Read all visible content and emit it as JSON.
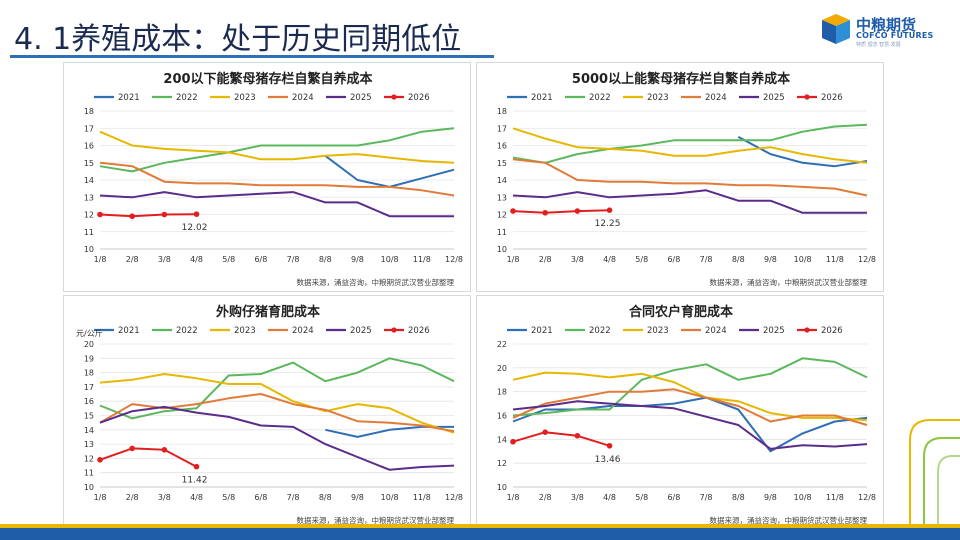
{
  "slide": {
    "title": "4. 1养殖成本：处于历史同期低位",
    "logo_cn": "中粮期货",
    "logo_en": "COFCO FUTURES",
    "logo_tag": "特质    理念    智慧    发展",
    "accent_color": "#2e6fb5"
  },
  "series_colors": {
    "2021": "#2e6fb5",
    "2022": "#5cb85c",
    "2023": "#e6b800",
    "2024": "#e07b39",
    "2025": "#5b2c8a",
    "2026": "#e02020"
  },
  "chart_data": [
    {
      "type": "line",
      "title": "200以下能繁母猪存栏自繁自养成本",
      "ylabel": "",
      "source": "数据来源，涌益咨询，中粮期货武汉营业部整理",
      "categories": [
        "1/8",
        "2/8",
        "3/8",
        "4/8",
        "5/8",
        "6/8",
        "7/8",
        "8/8",
        "9/8",
        "10/8",
        "11/8",
        "12/8"
      ],
      "yticks": [
        10,
        11,
        12,
        13,
        14,
        15,
        16,
        17,
        18
      ],
      "ylim": [
        10,
        18
      ],
      "end_label": "12.02",
      "series": [
        {
          "name": "2021",
          "values": [
            null,
            null,
            null,
            null,
            null,
            null,
            null,
            15.4,
            14.0,
            13.6,
            14.1,
            14.6
          ]
        },
        {
          "name": "2022",
          "values": [
            14.8,
            14.5,
            15.0,
            15.3,
            15.6,
            16.0,
            16.0,
            16.0,
            16.0,
            16.3,
            16.8,
            17.0
          ]
        },
        {
          "name": "2023",
          "values": [
            16.8,
            16.0,
            15.8,
            15.7,
            15.6,
            15.2,
            15.2,
            15.4,
            15.5,
            15.3,
            15.1,
            15.0
          ]
        },
        {
          "name": "2024",
          "values": [
            15.0,
            14.8,
            13.9,
            13.8,
            13.8,
            13.7,
            13.7,
            13.7,
            13.6,
            13.6,
            13.4,
            13.1
          ]
        },
        {
          "name": "2025",
          "values": [
            13.1,
            13.0,
            13.3,
            13.0,
            13.1,
            13.2,
            13.3,
            12.7,
            12.7,
            11.9,
            11.9,
            11.9
          ]
        },
        {
          "name": "2026",
          "values": [
            12.0,
            11.9,
            12.0,
            12.02,
            null,
            null,
            null,
            null,
            null,
            null,
            null,
            null
          ]
        }
      ]
    },
    {
      "type": "line",
      "title": "5000以上能繁母猪存栏自繁自养成本",
      "ylabel": "",
      "source": "数据来源，涌益咨询，中粮期货武汉营业部整理",
      "categories": [
        "1/8",
        "2/8",
        "3/8",
        "4/8",
        "5/8",
        "6/8",
        "7/8",
        "8/8",
        "9/8",
        "10/8",
        "11/8",
        "12/8"
      ],
      "yticks": [
        10,
        11,
        12,
        13,
        14,
        15,
        16,
        17,
        18
      ],
      "ylim": [
        10,
        18
      ],
      "end_label": "12.25",
      "series": [
        {
          "name": "2021",
          "values": [
            null,
            null,
            null,
            null,
            null,
            null,
            null,
            16.5,
            15.5,
            15.0,
            14.8,
            15.1
          ]
        },
        {
          "name": "2022",
          "values": [
            15.3,
            15.0,
            15.5,
            15.8,
            16.0,
            16.3,
            16.3,
            16.3,
            16.3,
            16.8,
            17.1,
            17.2
          ]
        },
        {
          "name": "2023",
          "values": [
            17.0,
            16.4,
            15.9,
            15.8,
            15.7,
            15.4,
            15.4,
            15.7,
            15.9,
            15.5,
            15.2,
            15.0
          ]
        },
        {
          "name": "2024",
          "values": [
            15.2,
            15.0,
            14.0,
            13.9,
            13.9,
            13.8,
            13.8,
            13.7,
            13.7,
            13.6,
            13.5,
            13.1
          ]
        },
        {
          "name": "2025",
          "values": [
            13.1,
            13.0,
            13.3,
            13.0,
            13.1,
            13.2,
            13.4,
            12.8,
            12.8,
            12.1,
            12.1,
            12.1
          ]
        },
        {
          "name": "2026",
          "values": [
            12.2,
            12.1,
            12.2,
            12.25,
            null,
            null,
            null,
            null,
            null,
            null,
            null,
            null
          ]
        }
      ]
    },
    {
      "type": "line",
      "title": "外购仔猪育肥成本",
      "ylabel": "元/公斤",
      "source": "数据来源，涌益咨询，中粮期货武汉营业部整理",
      "categories": [
        "1/8",
        "2/8",
        "3/8",
        "4/8",
        "5/8",
        "6/8",
        "7/8",
        "8/8",
        "9/8",
        "10/8",
        "11/8",
        "12/8"
      ],
      "yticks": [
        10,
        11,
        12,
        13,
        14,
        15,
        16,
        17,
        18,
        19,
        20
      ],
      "ylim": [
        10,
        20
      ],
      "end_label": "11.42",
      "series": [
        {
          "name": "2021",
          "values": [
            null,
            null,
            null,
            null,
            null,
            null,
            null,
            14.0,
            13.5,
            14.0,
            14.2,
            14.2
          ]
        },
        {
          "name": "2022",
          "values": [
            15.7,
            14.8,
            15.3,
            15.5,
            17.8,
            17.9,
            18.7,
            17.4,
            18.0,
            19.0,
            18.5,
            17.4
          ]
        },
        {
          "name": "2023",
          "values": [
            17.3,
            17.5,
            17.9,
            17.6,
            17.2,
            17.2,
            16.0,
            15.3,
            15.8,
            15.5,
            14.5,
            13.8
          ]
        },
        {
          "name": "2024",
          "values": [
            14.5,
            15.8,
            15.5,
            15.8,
            16.2,
            16.5,
            15.8,
            15.4,
            14.6,
            14.5,
            14.3,
            13.9
          ]
        },
        {
          "name": "2025",
          "values": [
            14.5,
            15.3,
            15.6,
            15.2,
            14.9,
            14.3,
            14.2,
            13.0,
            12.1,
            11.2,
            11.4,
            11.5
          ]
        },
        {
          "name": "2026",
          "values": [
            11.9,
            12.7,
            12.6,
            11.42,
            null,
            null,
            null,
            null,
            null,
            null,
            null,
            null
          ]
        }
      ]
    },
    {
      "type": "line",
      "title": "合同农户育肥成本",
      "ylabel": "",
      "source": "数据来源，涌益咨询，中粮期货武汉营业部整理",
      "categories": [
        "1/8",
        "2/8",
        "3/8",
        "4/8",
        "5/8",
        "6/8",
        "7/8",
        "8/8",
        "9/8",
        "10/8",
        "11/8",
        "12/8"
      ],
      "yticks": [
        10,
        12,
        14,
        16,
        18,
        20,
        22
      ],
      "ylim": [
        10,
        22
      ],
      "end_label": "13.46",
      "series": [
        {
          "name": "2021",
          "values": [
            15.5,
            16.5,
            16.5,
            16.8,
            16.8,
            17.0,
            17.5,
            16.5,
            13.0,
            14.5,
            15.5,
            15.8
          ]
        },
        {
          "name": "2022",
          "values": [
            16.0,
            16.2,
            16.5,
            16.5,
            19.0,
            19.8,
            20.3,
            19.0,
            19.5,
            20.8,
            20.5,
            19.2
          ]
        },
        {
          "name": "2023",
          "values": [
            19.0,
            19.6,
            19.5,
            19.2,
            19.5,
            18.8,
            17.5,
            17.2,
            16.2,
            15.8,
            15.8,
            15.6
          ]
        },
        {
          "name": "2024",
          "values": [
            15.8,
            17.0,
            17.5,
            18.0,
            18.0,
            18.2,
            17.5,
            16.8,
            15.5,
            16.0,
            16.0,
            15.2
          ]
        },
        {
          "name": "2025",
          "values": [
            16.5,
            16.8,
            17.2,
            17.0,
            16.8,
            16.6,
            15.9,
            15.2,
            13.2,
            13.5,
            13.4,
            13.6
          ]
        },
        {
          "name": "2026",
          "values": [
            13.8,
            14.6,
            14.3,
            13.46,
            null,
            null,
            null,
            null,
            null,
            null,
            null,
            null
          ]
        }
      ]
    }
  ]
}
